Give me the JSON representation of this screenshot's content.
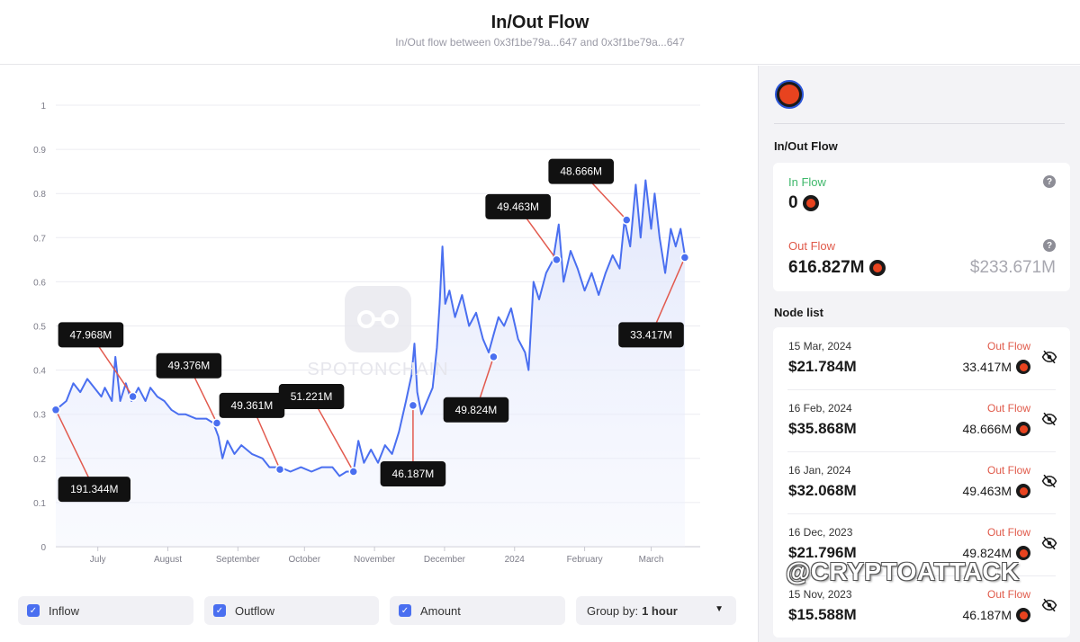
{
  "header": {
    "title": "In/Out Flow",
    "subtitle": "In/Out flow between 0x3f1be79a...647 and 0x3f1be79a...647"
  },
  "watermark": {
    "brand": "SPOTONCHAIN",
    "handle": "@CRYPTOATTACK"
  },
  "chart_data": {
    "type": "area",
    "title": "",
    "xlabel": "",
    "ylabel": "",
    "ylim": [
      0,
      1
    ],
    "y_ticks": [
      "0",
      "0.1",
      "0.2",
      "0.3",
      "0.4",
      "0.5",
      "0.6",
      "0.7",
      "0.8",
      "0.9",
      "1"
    ],
    "x_ticks": [
      {
        "label": "July",
        "x": 0.1
      },
      {
        "label": "August",
        "x": 1.1
      },
      {
        "label": "September",
        "x": 2.1
      },
      {
        "label": "October",
        "x": 3.05
      },
      {
        "label": "November",
        "x": 4.05
      },
      {
        "label": "December",
        "x": 5.05
      },
      {
        "label": "2024",
        "x": 6.05
      },
      {
        "label": "February",
        "x": 7.05
      },
      {
        "label": "March",
        "x": 8.0
      }
    ],
    "x_range": [
      -0.5,
      8.7
    ],
    "grid": true,
    "series": [
      {
        "color": "#4a6ff0",
        "points": [
          [
            -0.5,
            0.31
          ],
          [
            -0.35,
            0.33
          ],
          [
            -0.25,
            0.37
          ],
          [
            -0.15,
            0.35
          ],
          [
            -0.05,
            0.38
          ],
          [
            0.05,
            0.36
          ],
          [
            0.15,
            0.34
          ],
          [
            0.2,
            0.36
          ],
          [
            0.3,
            0.33
          ],
          [
            0.35,
            0.43
          ],
          [
            0.42,
            0.33
          ],
          [
            0.5,
            0.37
          ],
          [
            0.58,
            0.33
          ],
          [
            0.68,
            0.36
          ],
          [
            0.78,
            0.33
          ],
          [
            0.85,
            0.36
          ],
          [
            0.95,
            0.34
          ],
          [
            1.05,
            0.33
          ],
          [
            1.15,
            0.31
          ],
          [
            1.25,
            0.3
          ],
          [
            1.35,
            0.3
          ],
          [
            1.5,
            0.29
          ],
          [
            1.65,
            0.29
          ],
          [
            1.75,
            0.28
          ],
          [
            1.82,
            0.25
          ],
          [
            1.88,
            0.2
          ],
          [
            1.95,
            0.24
          ],
          [
            2.05,
            0.21
          ],
          [
            2.15,
            0.23
          ],
          [
            2.3,
            0.21
          ],
          [
            2.45,
            0.2
          ],
          [
            2.55,
            0.18
          ],
          [
            2.7,
            0.18
          ],
          [
            2.85,
            0.17
          ],
          [
            3.0,
            0.18
          ],
          [
            3.15,
            0.17
          ],
          [
            3.3,
            0.18
          ],
          [
            3.45,
            0.18
          ],
          [
            3.55,
            0.16
          ],
          [
            3.65,
            0.17
          ],
          [
            3.75,
            0.17
          ],
          [
            3.82,
            0.24
          ],
          [
            3.9,
            0.19
          ],
          [
            4.0,
            0.22
          ],
          [
            4.1,
            0.19
          ],
          [
            4.2,
            0.23
          ],
          [
            4.3,
            0.21
          ],
          [
            4.4,
            0.26
          ],
          [
            4.5,
            0.33
          ],
          [
            4.58,
            0.39
          ],
          [
            4.62,
            0.46
          ],
          [
            4.66,
            0.35
          ],
          [
            4.72,
            0.3
          ],
          [
            4.8,
            0.33
          ],
          [
            4.88,
            0.36
          ],
          [
            4.94,
            0.45
          ],
          [
            4.98,
            0.55
          ],
          [
            5.02,
            0.68
          ],
          [
            5.06,
            0.55
          ],
          [
            5.12,
            0.58
          ],
          [
            5.2,
            0.52
          ],
          [
            5.3,
            0.57
          ],
          [
            5.4,
            0.5
          ],
          [
            5.5,
            0.53
          ],
          [
            5.6,
            0.47
          ],
          [
            5.68,
            0.44
          ],
          [
            5.75,
            0.48
          ],
          [
            5.82,
            0.52
          ],
          [
            5.9,
            0.5
          ],
          [
            6.0,
            0.54
          ],
          [
            6.1,
            0.47
          ],
          [
            6.2,
            0.44
          ],
          [
            6.25,
            0.4
          ],
          [
            6.32,
            0.6
          ],
          [
            6.4,
            0.56
          ],
          [
            6.5,
            0.62
          ],
          [
            6.6,
            0.65
          ],
          [
            6.68,
            0.73
          ],
          [
            6.75,
            0.6
          ],
          [
            6.85,
            0.67
          ],
          [
            6.95,
            0.63
          ],
          [
            7.05,
            0.58
          ],
          [
            7.15,
            0.62
          ],
          [
            7.25,
            0.57
          ],
          [
            7.35,
            0.62
          ],
          [
            7.45,
            0.66
          ],
          [
            7.55,
            0.63
          ],
          [
            7.62,
            0.74
          ],
          [
            7.7,
            0.68
          ],
          [
            7.78,
            0.82
          ],
          [
            7.85,
            0.7
          ],
          [
            7.92,
            0.83
          ],
          [
            8.0,
            0.72
          ],
          [
            8.05,
            0.8
          ],
          [
            8.12,
            0.7
          ],
          [
            8.2,
            0.62
          ],
          [
            8.28,
            0.72
          ],
          [
            8.35,
            0.68
          ],
          [
            8.42,
            0.72
          ],
          [
            8.48,
            0.66
          ]
        ]
      }
    ],
    "annotations": [
      {
        "label": "191.344M",
        "at": [
          -0.5,
          0.31
        ],
        "label_at": [
          0.05,
          0.13
        ]
      },
      {
        "label": "47.968M",
        "at": [
          0.6,
          0.34
        ],
        "label_at": [
          0.0,
          0.48
        ]
      },
      {
        "label": "49.376M",
        "at": [
          1.8,
          0.28
        ],
        "label_at": [
          1.4,
          0.41
        ]
      },
      {
        "label": "49.361M",
        "at": [
          2.7,
          0.175
        ],
        "label_at": [
          2.3,
          0.32
        ]
      },
      {
        "label": "51.221M",
        "at": [
          3.75,
          0.17
        ],
        "label_at": [
          3.15,
          0.34
        ]
      },
      {
        "label": "46.187M",
        "at": [
          4.6,
          0.32
        ],
        "label_at": [
          4.6,
          0.165
        ]
      },
      {
        "label": "49.824M",
        "at": [
          5.75,
          0.43
        ],
        "label_at": [
          5.5,
          0.31
        ]
      },
      {
        "label": "49.463M",
        "at": [
          6.65,
          0.65
        ],
        "label_at": [
          6.1,
          0.77
        ]
      },
      {
        "label": "48.666M",
        "at": [
          7.65,
          0.74
        ],
        "label_at": [
          7.0,
          0.85
        ]
      },
      {
        "label": "33.417M",
        "at": [
          8.48,
          0.655
        ],
        "label_at": [
          8.0,
          0.48
        ]
      }
    ]
  },
  "toolbar": {
    "checkboxes": [
      {
        "label": "Inflow",
        "checked": true
      },
      {
        "label": "Outflow",
        "checked": true
      },
      {
        "label": "Amount",
        "checked": true
      }
    ],
    "group_by_label": "Group by:",
    "group_by_value": "1 hour"
  },
  "sidebar": {
    "flow_heading": "In/Out Flow",
    "in_flow": {
      "label": "In Flow",
      "value": "0",
      "color": "#3fb86b"
    },
    "out_flow": {
      "label": "Out Flow",
      "value": "616.827M",
      "usd": "$233.671M",
      "color": "#e05a4a"
    },
    "node_list_heading": "Node list",
    "nodes": [
      {
        "date": "15 Mar, 2024",
        "usd": "$21.784M",
        "type": "Out Flow",
        "amount": "33.417M"
      },
      {
        "date": "16 Feb, 2024",
        "usd": "$35.868M",
        "type": "Out Flow",
        "amount": "48.666M"
      },
      {
        "date": "16 Jan, 2024",
        "usd": "$32.068M",
        "type": "Out Flow",
        "amount": "49.463M"
      },
      {
        "date": "16 Dec, 2023",
        "usd": "$21.796M",
        "type": "Out Flow",
        "amount": "49.824M"
      },
      {
        "date": "15 Nov, 2023",
        "usd": "$15.588M",
        "type": "Out Flow",
        "amount": "46.187M"
      }
    ]
  }
}
